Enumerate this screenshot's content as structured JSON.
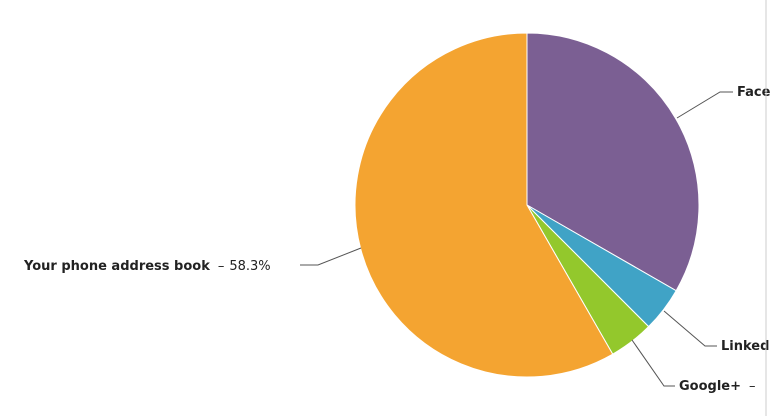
{
  "chart_data": {
    "type": "pie",
    "categories": [
      "Face",
      "Linked",
      "Google+",
      "Your phone address book"
    ],
    "values": [
      33.3,
      4.2,
      4.2,
      58.3
    ],
    "value_labels": [
      null,
      null,
      null,
      "58.3%"
    ],
    "separator": "–",
    "colors": [
      "#7b5f93",
      "#40a3c6",
      "#93c82c",
      "#f4a431"
    ]
  }
}
